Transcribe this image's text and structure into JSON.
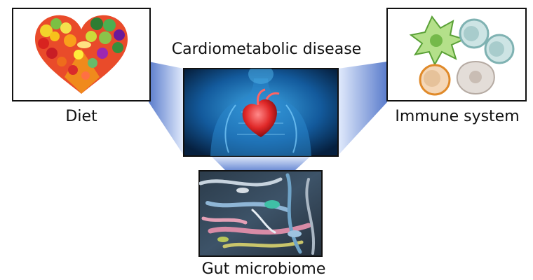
{
  "title": "Cardiometabolic disease",
  "panels": {
    "diet": {
      "label": "Diet",
      "icon": "heart-of-vegetables-icon"
    },
    "immune": {
      "label": "Immune system",
      "icon": "immune-cells-icon"
    },
    "center": {
      "icon": "human-heart-illustration"
    },
    "gut": {
      "label": "Gut microbiome",
      "icon": "gut-bacteria-micrograph"
    }
  },
  "colors": {
    "connector_dark": "#5577c8",
    "connector_light": "#dbe6fb",
    "frame": "#111111"
  }
}
